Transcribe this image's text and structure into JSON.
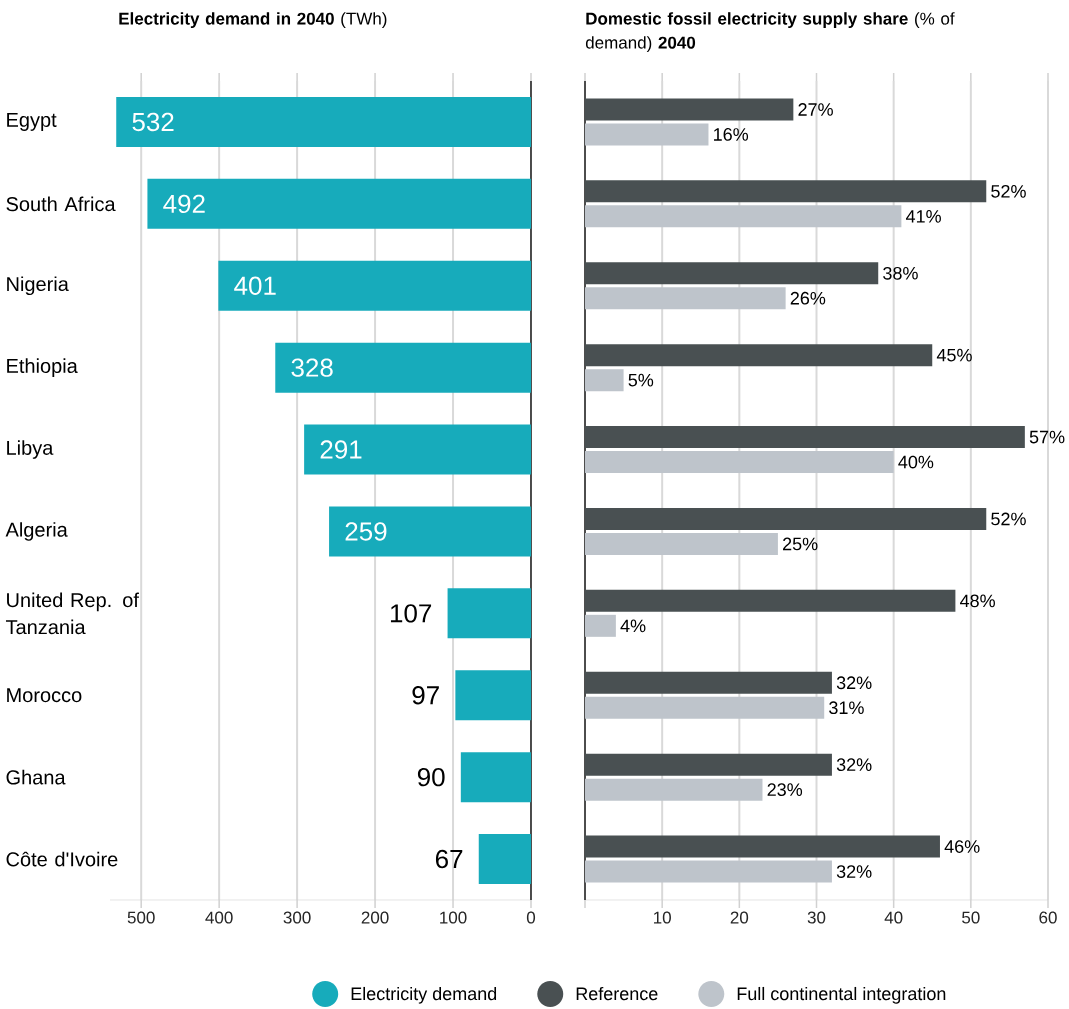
{
  "chart_data": [
    {
      "type": "bar",
      "orientation": "horizontal",
      "title": "**Electricity demand in 2040** (TWh)",
      "categories": [
        "Egypt",
        "South Africa",
        "Nigeria",
        "Ethiopia",
        "Libya",
        "Algeria",
        "United Rep. of Tanzania",
        "Morocco",
        "Ghana",
        "Côte d'Ivoire"
      ],
      "series": [
        {
          "name": "Electricity demand",
          "color": "#17abbb",
          "values": [
            532,
            492,
            401,
            328,
            291,
            259,
            107,
            97,
            90,
            67
          ]
        }
      ],
      "xlim": [
        540,
        0
      ],
      "xticks": [
        500,
        400,
        300,
        200,
        100,
        0
      ],
      "grid": "x",
      "data_labels": true,
      "legend": "bottom"
    },
    {
      "type": "bar",
      "orientation": "horizontal",
      "title": "**Domestic fossil electricity supply share** (% of demand) **2040**",
      "categories": [
        null,
        null,
        null,
        null,
        null,
        null,
        null,
        null,
        null,
        null
      ],
      "series": [
        {
          "name": "Reference",
          "color": "#495052",
          "values": [
            27,
            52,
            38,
            45,
            57,
            52,
            48,
            32,
            32,
            46
          ],
          "value_labels": [
            "27%",
            "52%",
            "38%",
            "45%",
            "57%",
            "52%",
            "48%",
            "32%",
            "32%",
            "46%"
          ]
        },
        {
          "name": "Full continental integration",
          "color": "#bec4cb",
          "values": [
            16,
            41,
            26,
            5,
            40,
            25,
            4,
            31,
            23,
            32
          ],
          "value_labels": [
            "16%",
            "41%",
            "26%",
            "5%",
            "40%",
            "25%",
            "4%",
            "31%",
            "23%",
            "32%"
          ]
        }
      ],
      "xlim": [
        0,
        60
      ],
      "xticks": [
        {
          "value": 0,
          "label": null
        },
        10,
        20,
        30,
        40,
        50,
        60
      ],
      "grid": "x",
      "tick_labels": "x",
      "legend": "bottom"
    }
  ]
}
